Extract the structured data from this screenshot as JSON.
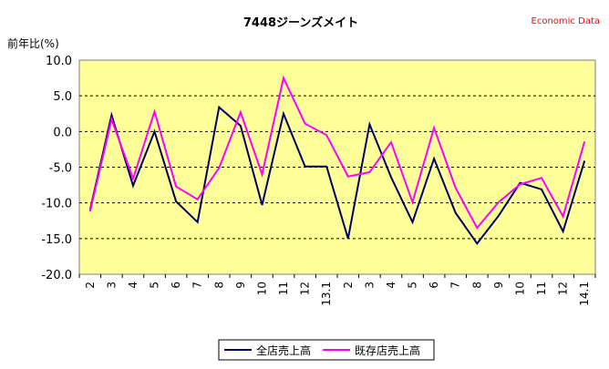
{
  "chart_data": {
    "type": "line",
    "title": "7448ジーンズメイト",
    "source_label": "Economic Data",
    "ylabel": "前年比(%)",
    "ylim": [
      -20,
      10
    ],
    "yticks": [
      "10.0",
      "5.0",
      "0.0",
      "-5.0",
      "-10.0",
      "-15.0",
      "-20.0"
    ],
    "ytick_values": [
      10,
      5,
      0,
      -5,
      -10,
      -15,
      -20
    ],
    "categories": [
      "2",
      "3",
      "4",
      "5",
      "6",
      "7",
      "8",
      "9",
      "10",
      "11",
      "12",
      "13.1",
      "2",
      "3",
      "4",
      "5",
      "6",
      "7",
      "8",
      "9",
      "10",
      "11",
      "12",
      "14.1"
    ],
    "grid": true,
    "legend_position": "bottom",
    "background_color": "#FFFF99",
    "series": [
      {
        "name": "全店売上高",
        "color": "#000066",
        "values": [
          -11.0,
          2.3,
          -7.6,
          0.0,
          -9.8,
          -12.7,
          3.4,
          0.8,
          -10.3,
          2.5,
          -4.9,
          -4.9,
          -15.0,
          1.0,
          -6.4,
          -12.7,
          -3.8,
          -11.4,
          -15.7,
          -11.8,
          -7.2,
          -8.1,
          -14.0,
          -4.1
        ]
      },
      {
        "name": "既存店売上高",
        "color": "#FF00FF",
        "values": [
          -11.2,
          1.7,
          -6.6,
          2.8,
          -7.7,
          -9.5,
          -5.1,
          2.7,
          -6.0,
          7.5,
          1.1,
          -0.5,
          -6.3,
          -5.7,
          -1.5,
          -9.9,
          0.5,
          -7.9,
          -13.5,
          -9.9,
          -7.4,
          -6.5,
          -11.9,
          -1.4
        ]
      }
    ]
  }
}
